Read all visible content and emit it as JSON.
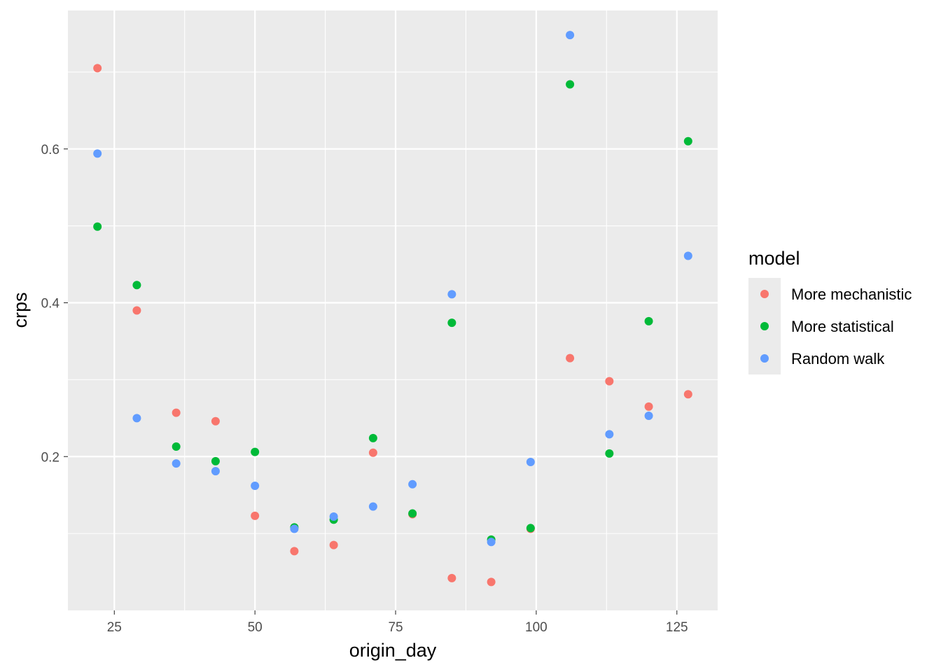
{
  "chart_data": {
    "type": "scatter",
    "title": "",
    "xlabel": "origin_day",
    "ylabel": "crps",
    "xlim": [
      16.75,
      132.25
    ],
    "ylim": [
      0.0,
      0.78
    ],
    "x_ticks": [
      25,
      50,
      75,
      100,
      125
    ],
    "x_tick_labels": [
      "25",
      "50",
      "75",
      "100",
      "125"
    ],
    "y_ticks": [
      0.2,
      0.4,
      0.6
    ],
    "y_tick_labels": [
      "0.2",
      "0.4",
      "0.6"
    ],
    "grid": true,
    "panel_background": "#ebebeb",
    "legend": {
      "title": "model",
      "position": "right"
    },
    "series": [
      {
        "name": "More mechanistic",
        "color": "#f8766d",
        "x": [
          22,
          29,
          36,
          43,
          50,
          57,
          64,
          71,
          78,
          85,
          92,
          99,
          106,
          113,
          120,
          127
        ],
        "y": [
          0.705,
          0.39,
          0.257,
          0.246,
          0.123,
          0.077,
          0.085,
          0.205,
          0.125,
          0.042,
          0.037,
          0.106,
          0.328,
          0.298,
          0.265,
          0.281
        ]
      },
      {
        "name": "More statistical",
        "color": "#00ba38",
        "x": [
          22,
          29,
          36,
          43,
          50,
          57,
          64,
          71,
          78,
          85,
          92,
          99,
          106,
          113,
          120,
          127
        ],
        "y": [
          0.499,
          0.423,
          0.213,
          0.194,
          0.206,
          0.108,
          0.118,
          0.224,
          0.126,
          0.374,
          0.092,
          0.107,
          0.684,
          0.204,
          0.376,
          0.61
        ]
      },
      {
        "name": "Random walk",
        "color": "#619cff",
        "x": [
          22,
          29,
          36,
          43,
          50,
          57,
          64,
          71,
          78,
          85,
          92,
          99,
          106,
          113,
          120,
          127
        ],
        "y": [
          0.594,
          0.25,
          0.191,
          0.181,
          0.162,
          0.106,
          0.122,
          0.135,
          0.164,
          0.411,
          0.089,
          0.193,
          0.748,
          0.229,
          0.253,
          0.461
        ]
      }
    ]
  }
}
